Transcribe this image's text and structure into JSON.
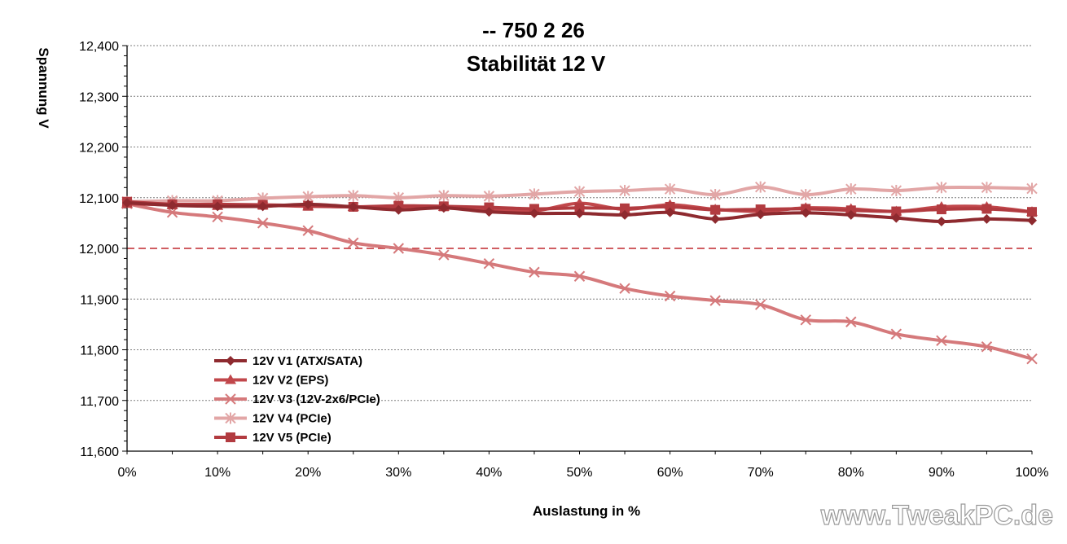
{
  "chart_data": {
    "type": "line",
    "title": "-- 750 2 26",
    "subtitle": "Stabilität 12 V",
    "xlabel": "Auslastung in %",
    "ylabel": "Spannung V",
    "xlim": [
      0,
      100
    ],
    "ylim": [
      11.6,
      12.4
    ],
    "x": [
      0,
      5,
      10,
      15,
      20,
      25,
      30,
      35,
      40,
      45,
      50,
      55,
      60,
      65,
      70,
      75,
      80,
      85,
      90,
      95,
      100
    ],
    "x_ticks": [
      0,
      10,
      20,
      30,
      40,
      50,
      60,
      70,
      80,
      90,
      100
    ],
    "x_tick_labels": [
      "0%",
      "10%",
      "20%",
      "30%",
      "40%",
      "50%",
      "60%",
      "70%",
      "80%",
      "90%",
      "100%"
    ],
    "y_ticks": [
      11.6,
      11.7,
      11.8,
      11.9,
      12.0,
      12.1,
      12.2,
      12.3,
      12.4
    ],
    "y_tick_labels": [
      "11,600",
      "11,700",
      "11,800",
      "11,900",
      "12,000",
      "12,100",
      "12,200",
      "12,300",
      "12,400"
    ],
    "grid": "horizontal dashed",
    "reference_line": {
      "y": 12.0,
      "color": "#c0282e",
      "style": "dashed"
    },
    "legend_position": "lower-left",
    "series": [
      {
        "name": "12V V1 (ATX/SATA)",
        "marker": "diamond",
        "color": "#8e2a2f",
        "values": [
          12.09,
          12.085,
          12.083,
          12.083,
          12.087,
          12.082,
          12.076,
          12.08,
          12.072,
          12.069,
          12.069,
          12.066,
          12.071,
          12.058,
          12.067,
          12.07,
          12.066,
          12.06,
          12.053,
          12.058,
          12.055
        ]
      },
      {
        "name": "12V V2 (EPS)",
        "marker": "triangle",
        "color": "#c1474b",
        "values": [
          12.088,
          12.086,
          12.084,
          12.085,
          12.083,
          12.082,
          12.082,
          12.082,
          12.078,
          12.074,
          12.089,
          12.077,
          12.086,
          12.077,
          12.073,
          12.08,
          12.078,
          12.073,
          12.082,
          12.082,
          12.072
        ]
      },
      {
        "name": "12V V3 (12V-2x6/PCIe)",
        "marker": "x",
        "color": "#d5797b",
        "values": [
          12.088,
          12.071,
          12.062,
          12.05,
          12.035,
          12.011,
          12.0,
          11.987,
          11.97,
          11.953,
          11.945,
          11.921,
          11.906,
          11.897,
          11.889,
          11.859,
          11.855,
          11.831,
          11.818,
          11.806,
          11.782
        ]
      },
      {
        "name": "12V V4 (PCIe)",
        "marker": "star",
        "color": "#e2a6a6",
        "values": [
          12.092,
          12.094,
          12.094,
          12.099,
          12.102,
          12.104,
          12.1,
          12.104,
          12.103,
          12.107,
          12.112,
          12.114,
          12.117,
          12.106,
          12.121,
          12.106,
          12.117,
          12.114,
          12.12,
          12.12,
          12.118
        ]
      },
      {
        "name": "12V V5 (PCIe)",
        "marker": "square",
        "color": "#b23b40",
        "values": [
          12.092,
          12.087,
          12.087,
          12.086,
          12.084,
          12.082,
          12.084,
          12.083,
          12.081,
          12.078,
          12.08,
          12.079,
          12.082,
          12.076,
          12.077,
          12.078,
          12.075,
          12.073,
          12.077,
          12.078,
          12.072
        ]
      }
    ]
  },
  "watermark": "www.TweakPC.de"
}
